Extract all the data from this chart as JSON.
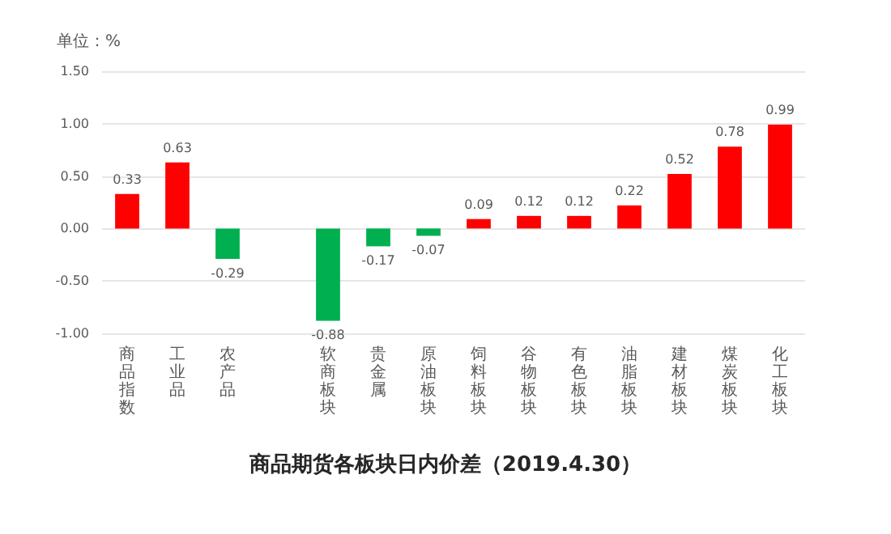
{
  "chart_data": {
    "type": "bar",
    "title": "商品期货各板块日内价差（2019.4.30）",
    "ylabel": "单位：%",
    "categories": [
      "商品指数",
      "工业品",
      "农产品",
      null,
      "软商板块",
      "贵金属",
      "原油板块",
      "饲料板块",
      "谷物板块",
      "有色板块",
      "油脂板块",
      "建材板块",
      "煤炭板块",
      "化工板块"
    ],
    "values": [
      0.33,
      0.63,
      -0.29,
      null,
      -0.88,
      -0.17,
      -0.07,
      0.09,
      0.12,
      0.12,
      0.22,
      0.52,
      0.78,
      0.99
    ],
    "colors": [
      "#ff0000",
      "#ff0000",
      "#00b050",
      null,
      "#00b050",
      "#00b050",
      "#00b050",
      "#ff0000",
      "#ff0000",
      "#ff0000",
      "#ff0000",
      "#ff0000",
      "#ff0000",
      "#ff0000"
    ],
    "ylim": [
      -1,
      1.5
    ],
    "yticks": [
      {
        "value": -1,
        "label": "-1.00"
      },
      {
        "value": -0.5,
        "label": "-0.50"
      },
      {
        "value": 0,
        "label": "0.00"
      },
      {
        "value": 0.5,
        "label": "0.50"
      },
      {
        "value": 1,
        "label": "1.00"
      },
      {
        "value": 1.5,
        "label": "1.50"
      }
    ],
    "grid": "y",
    "data_labels": true
  }
}
